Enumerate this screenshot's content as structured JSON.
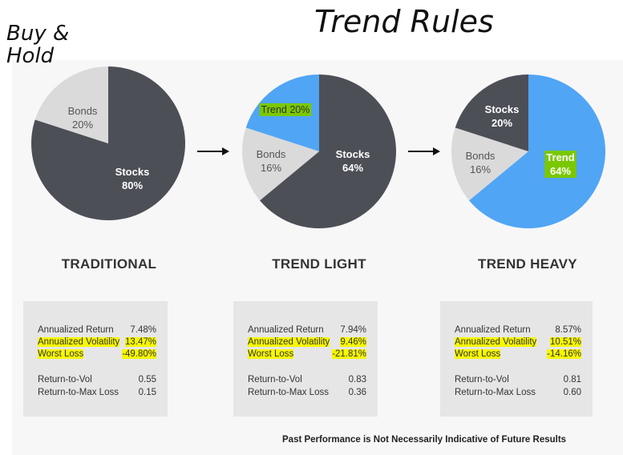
{
  "annotations": {
    "buy_hold": "Buy & Hold",
    "trend_rules": "Trend Rules"
  },
  "colors": {
    "stocks": "#4d4f57",
    "bonds": "#dadadb",
    "trend": "#50a5f5",
    "highlight": "#f7f700",
    "highlight_green": "#7ac800"
  },
  "chart_data": [
    {
      "type": "pie",
      "title": "TRADITIONAL",
      "slices": [
        {
          "label": "Stocks",
          "value": 80,
          "color": "#4d4f57"
        },
        {
          "label": "Bonds",
          "value": 20,
          "color": "#dadadb"
        }
      ]
    },
    {
      "type": "pie",
      "title": "TREND LIGHT",
      "slices": [
        {
          "label": "Stocks",
          "value": 64,
          "color": "#4d4f57"
        },
        {
          "label": "Bonds",
          "value": 16,
          "color": "#dadadb"
        },
        {
          "label": "Trend",
          "value": 20,
          "color": "#50a5f5"
        }
      ]
    },
    {
      "type": "pie",
      "title": "TREND HEAVY",
      "slices": [
        {
          "label": "Trend",
          "value": 64,
          "color": "#50a5f5"
        },
        {
          "label": "Bonds",
          "value": 16,
          "color": "#dadadb"
        },
        {
          "label": "Stocks",
          "value": 20,
          "color": "#4d4f57"
        }
      ]
    }
  ],
  "stats": [
    {
      "rows": [
        {
          "label": "Annualized Return",
          "value": "7.48%"
        },
        {
          "label": "Annualized Volatility",
          "value": "13.47%"
        },
        {
          "label": "Worst Loss",
          "value": "-49.80%"
        },
        {
          "label": "Return-to-Vol",
          "value": "0.55"
        },
        {
          "label": "Return-to-Max Loss",
          "value": "0.15"
        }
      ]
    },
    {
      "rows": [
        {
          "label": "Annualized Return",
          "value": "7.94%"
        },
        {
          "label": "Annualized Volatility",
          "value": "9.46%"
        },
        {
          "label": "Worst Loss",
          "value": "-21.81%"
        },
        {
          "label": "Return-to-Vol",
          "value": "0.83"
        },
        {
          "label": "Return-to-Max Loss",
          "value": "0.36"
        }
      ]
    },
    {
      "rows": [
        {
          "label": "Annualized Return",
          "value": "8.57%"
        },
        {
          "label": "Annualized Volatility",
          "value": "10.51%"
        },
        {
          "label": "Worst Loss",
          "value": "-14.16%"
        },
        {
          "label": "Return-to-Vol",
          "value": "0.81"
        },
        {
          "label": "Return-to-Max Loss",
          "value": "0.60"
        }
      ]
    }
  ],
  "footer": "Past Performance is Not Necessarily Indicative of Future Results"
}
